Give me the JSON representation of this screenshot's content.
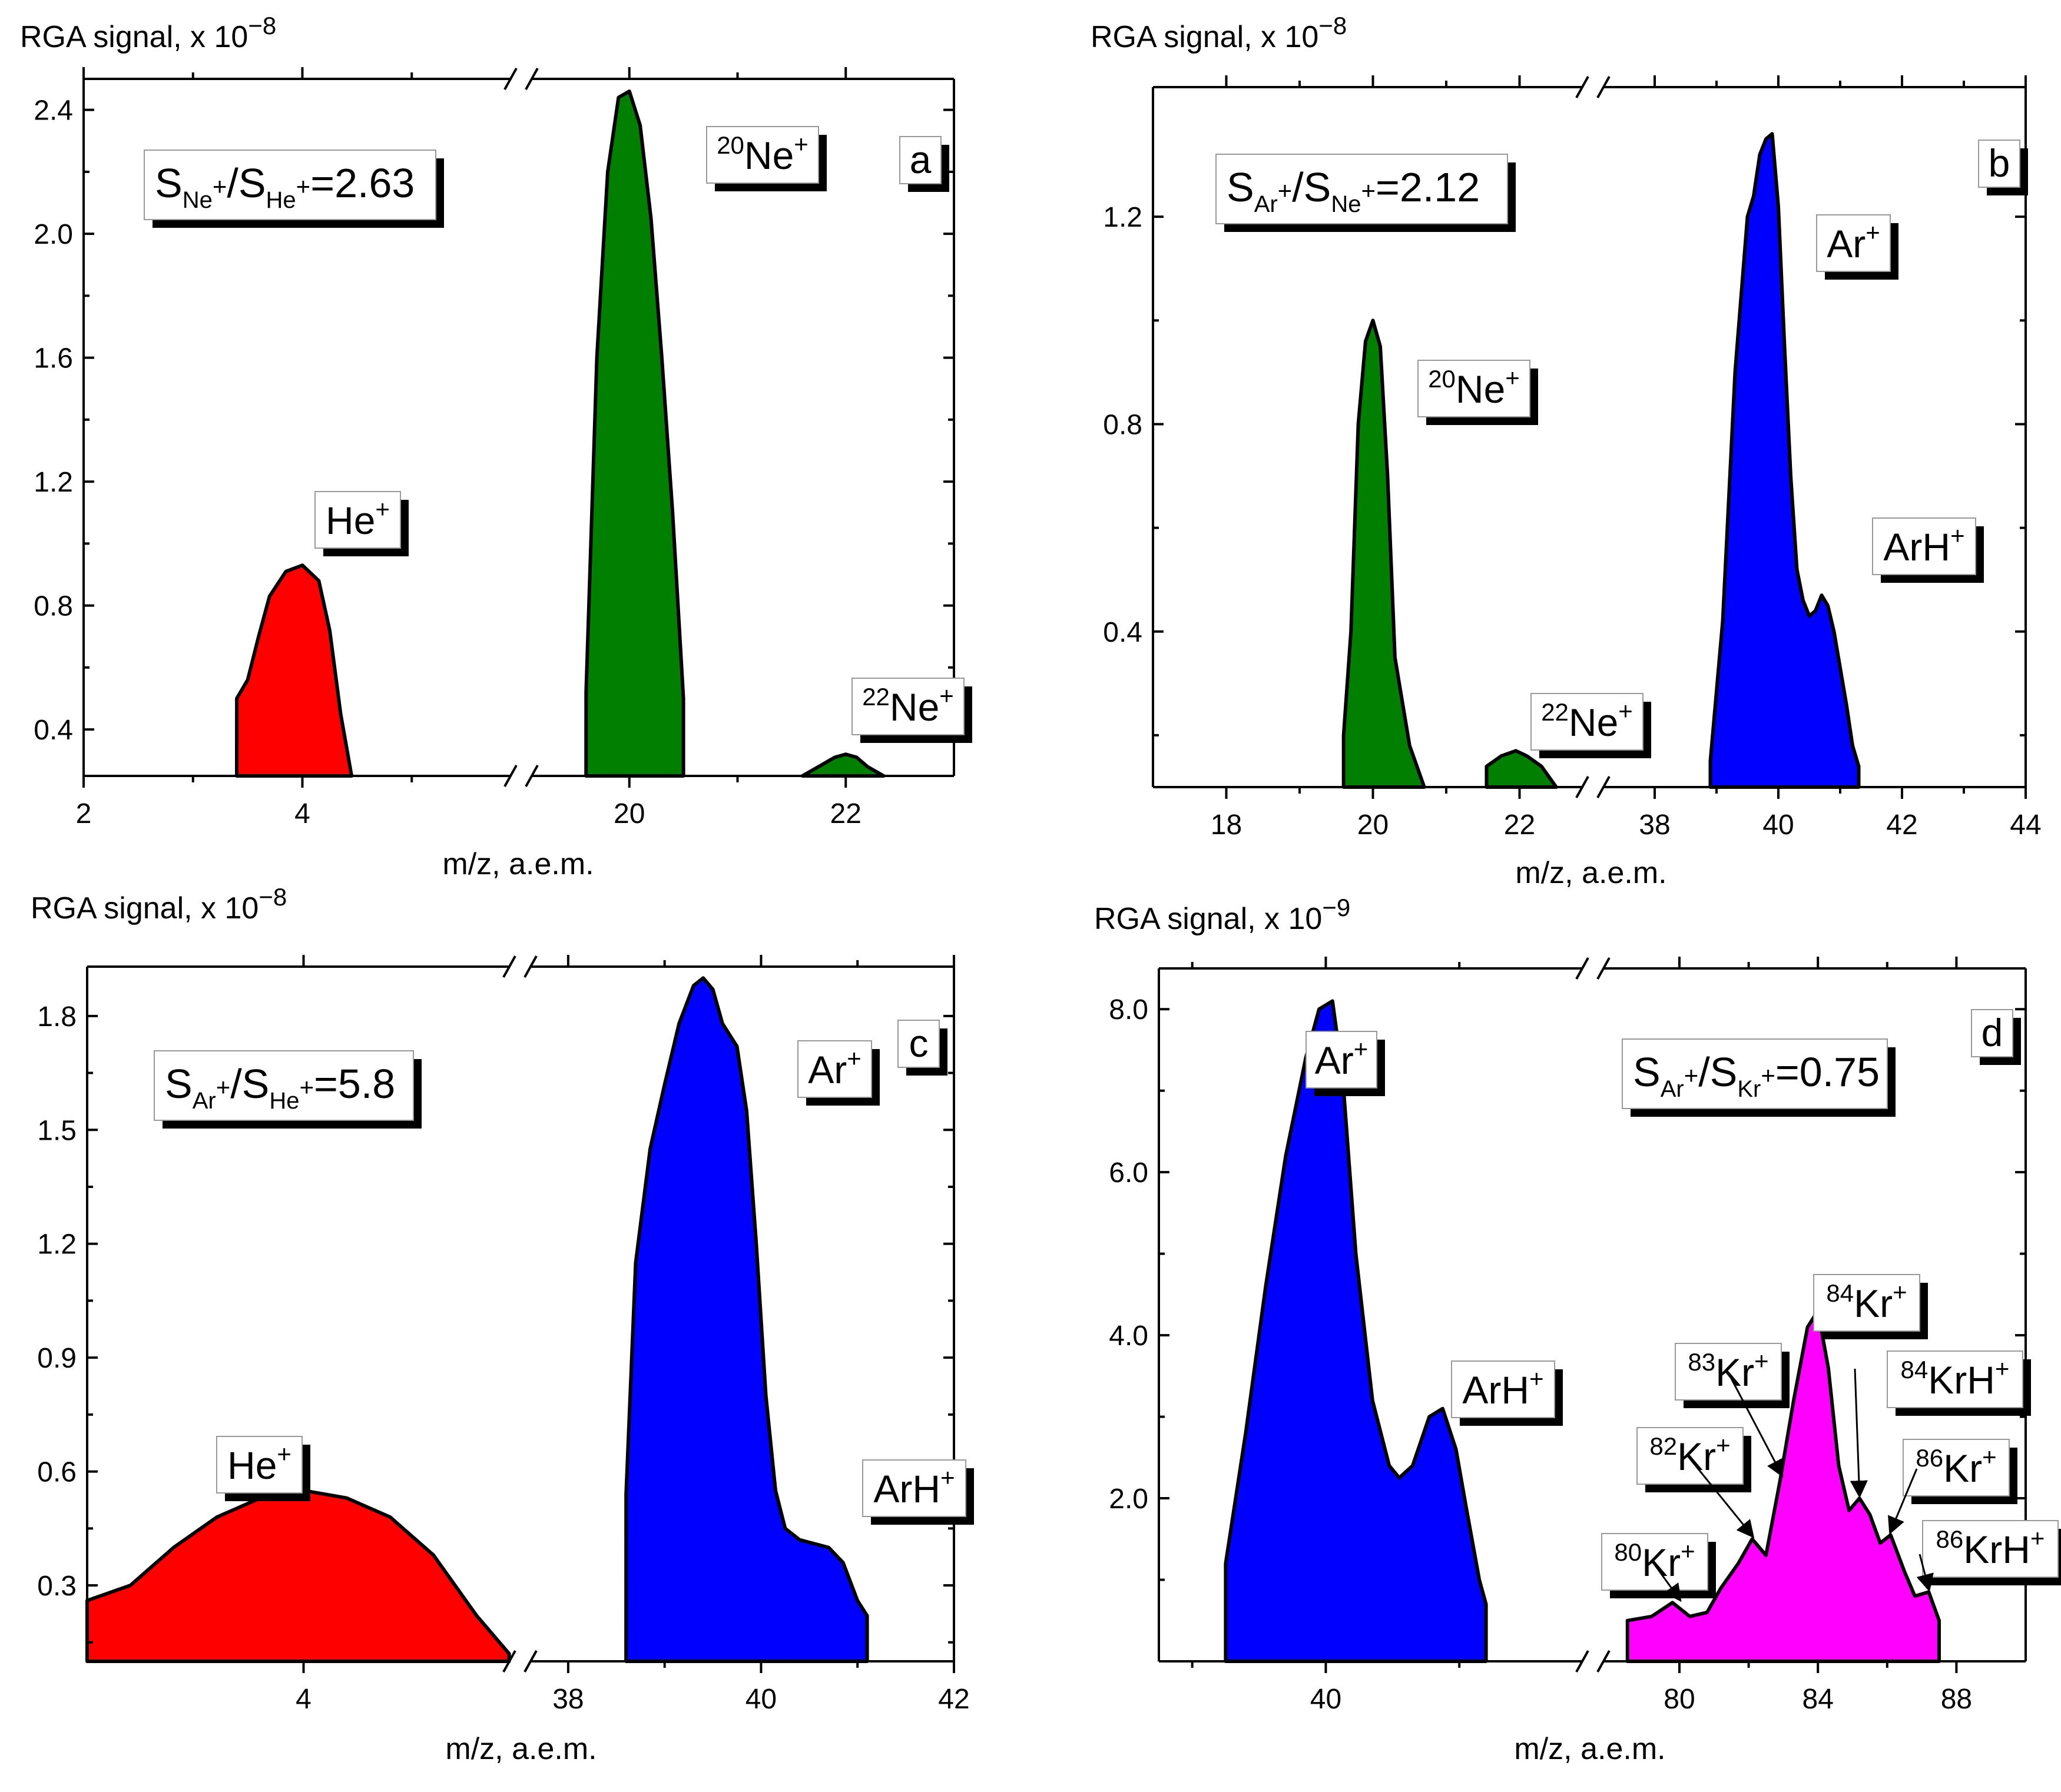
{
  "chart_data": [
    {
      "panel": "a",
      "type": "area",
      "ylabel": "RGA signal, x 10",
      "ylabel_exp": "−8",
      "xlabel": "m/z, a.e.m.",
      "ylim": [
        0.25,
        2.5
      ],
      "yticks": [
        "0.4",
        "0.8",
        "1.2",
        "1.6",
        "2.0",
        "2.4"
      ],
      "ytick_values": [
        0.4,
        0.8,
        1.2,
        1.6,
        2.0,
        2.4
      ],
      "xticks": [
        [
          "2",
          "4"
        ],
        [
          "20",
          "22"
        ]
      ],
      "ratio": {
        "a": "Ne",
        "a_sup": "+",
        "b": "He",
        "b_sup": "+",
        "value": "=2.63"
      },
      "series": [
        {
          "name": "He+",
          "color": "#ff0000",
          "segment": 0,
          "points": [
            [
              3.4,
              0.25
            ],
            [
              3.4,
              0.5
            ],
            [
              3.5,
              0.56
            ],
            [
              3.6,
              0.7
            ],
            [
              3.7,
              0.83
            ],
            [
              3.85,
              0.91
            ],
            [
              4.0,
              0.93
            ],
            [
              4.15,
              0.88
            ],
            [
              4.25,
              0.72
            ],
            [
              4.35,
              0.45
            ],
            [
              4.45,
              0.25
            ]
          ]
        },
        {
          "name": "20Ne+",
          "color": "#007f00",
          "segment": 1,
          "points": [
            [
              19.6,
              0.25
            ],
            [
              19.6,
              0.52
            ],
            [
              19.7,
              1.6
            ],
            [
              19.8,
              2.2
            ],
            [
              19.9,
              2.44
            ],
            [
              20.0,
              2.46
            ],
            [
              20.1,
              2.35
            ],
            [
              20.2,
              2.05
            ],
            [
              20.3,
              1.6
            ],
            [
              20.4,
              1.1
            ],
            [
              20.5,
              0.5
            ],
            [
              20.5,
              0.25
            ]
          ]
        },
        {
          "name": "22Ne+",
          "color": "#007f00",
          "segment": 1,
          "points": [
            [
              21.6,
              0.25
            ],
            [
              21.75,
              0.28
            ],
            [
              21.9,
              0.31
            ],
            [
              22.0,
              0.32
            ],
            [
              22.1,
              0.31
            ],
            [
              22.2,
              0.28
            ],
            [
              22.35,
              0.25
            ]
          ]
        }
      ],
      "labels": [
        {
          "iso": "",
          "text": "He",
          "sup": "+"
        },
        {
          "iso": "20",
          "text": "Ne",
          "sup": "+"
        },
        {
          "iso": "22",
          "text": "Ne",
          "sup": "+"
        }
      ]
    },
    {
      "panel": "b",
      "type": "area",
      "ylabel": "RGA signal, x 10",
      "ylabel_exp": "−8",
      "xlabel": "m/z, a.e.m.",
      "ylim": [
        0.1,
        1.45
      ],
      "yticks": [
        "0.4",
        "0.8",
        "1.2"
      ],
      "ytick_values": [
        0.4,
        0.8,
        1.2
      ],
      "xticks": [
        [
          "18",
          "20",
          "22"
        ],
        [
          "38",
          "40",
          "42",
          "44"
        ]
      ],
      "ratio": {
        "a": "Ar",
        "a_sup": "+",
        "b": "Ne",
        "b_sup": "+",
        "value": "=2.12"
      },
      "series": [
        {
          "name": "20Ne+",
          "color": "#007f00",
          "segment": 0,
          "points": [
            [
              19.6,
              0.1
            ],
            [
              19.6,
              0.2
            ],
            [
              19.7,
              0.4
            ],
            [
              19.8,
              0.8
            ],
            [
              19.9,
              0.96
            ],
            [
              20.0,
              1.0
            ],
            [
              20.1,
              0.95
            ],
            [
              20.2,
              0.7
            ],
            [
              20.3,
              0.35
            ],
            [
              20.5,
              0.18
            ],
            [
              20.7,
              0.1
            ]
          ]
        },
        {
          "name": "22Ne+",
          "color": "#007f00",
          "segment": 0,
          "points": [
            [
              21.55,
              0.1
            ],
            [
              21.55,
              0.14
            ],
            [
              21.75,
              0.16
            ],
            [
              21.95,
              0.17
            ],
            [
              22.1,
              0.16
            ],
            [
              22.3,
              0.14
            ],
            [
              22.5,
              0.1
            ]
          ]
        },
        {
          "name": "Ar+",
          "color": "#0000ff",
          "segment": 1,
          "points": [
            [
              38.9,
              0.1
            ],
            [
              38.9,
              0.15
            ],
            [
              39.1,
              0.42
            ],
            [
              39.3,
              0.9
            ],
            [
              39.5,
              1.2
            ],
            [
              39.6,
              1.24
            ],
            [
              39.7,
              1.32
            ],
            [
              39.8,
              1.35
            ],
            [
              39.9,
              1.36
            ],
            [
              40.0,
              1.22
            ],
            [
              40.1,
              0.95
            ],
            [
              40.2,
              0.7
            ],
            [
              40.3,
              0.52
            ],
            [
              40.4,
              0.46
            ],
            [
              40.5,
              0.43
            ],
            [
              40.6,
              0.44
            ],
            [
              40.7,
              0.47
            ],
            [
              40.8,
              0.45
            ],
            [
              40.9,
              0.4
            ],
            [
              41.0,
              0.33
            ],
            [
              41.1,
              0.26
            ],
            [
              41.2,
              0.18
            ],
            [
              41.3,
              0.14
            ],
            [
              41.3,
              0.1
            ]
          ]
        }
      ],
      "labels": [
        {
          "iso": "20",
          "text": "Ne",
          "sup": "+"
        },
        {
          "iso": "22",
          "text": "Ne",
          "sup": "+"
        },
        {
          "iso": "",
          "text": "Ar",
          "sup": "+"
        },
        {
          "iso": "",
          "text": "ArH",
          "sup": "+"
        }
      ]
    },
    {
      "panel": "c",
      "type": "area",
      "ylabel": "RGA signal, x 10",
      "ylabel_exp": "−8",
      "xlabel": "m/z, a.e.m.",
      "ylim": [
        0.1,
        1.93
      ],
      "yticks": [
        "0.3",
        "0.6",
        "0.9",
        "1.2",
        "1.5",
        "1.8"
      ],
      "ytick_values": [
        0.3,
        0.6,
        0.9,
        1.2,
        1.5,
        1.8
      ],
      "xticks": [
        [
          "4"
        ],
        [
          "38",
          "40",
          "42"
        ]
      ],
      "ratio": {
        "a": "Ar",
        "a_sup": "+",
        "b": "He",
        "b_sup": "+",
        "value": "=5.8"
      },
      "series": [
        {
          "name": "He+",
          "color": "#ff0000",
          "segment": 0,
          "points": [
            [
              3.0,
              0.1
            ],
            [
              3.0,
              0.26
            ],
            [
              3.2,
              0.3
            ],
            [
              3.4,
              0.4
            ],
            [
              3.6,
              0.48
            ],
            [
              3.8,
              0.53
            ],
            [
              4.0,
              0.55
            ],
            [
              4.2,
              0.53
            ],
            [
              4.4,
              0.48
            ],
            [
              4.6,
              0.38
            ],
            [
              4.8,
              0.22
            ],
            [
              4.95,
              0.12
            ],
            [
              4.95,
              0.1
            ]
          ]
        },
        {
          "name": "Ar+",
          "color": "#0000ff",
          "segment": 1,
          "points": [
            [
              38.6,
              0.1
            ],
            [
              38.6,
              0.54
            ],
            [
              38.7,
              1.15
            ],
            [
              38.85,
              1.45
            ],
            [
              39.0,
              1.62
            ],
            [
              39.15,
              1.78
            ],
            [
              39.3,
              1.88
            ],
            [
              39.4,
              1.9
            ],
            [
              39.5,
              1.87
            ],
            [
              39.6,
              1.78
            ],
            [
              39.75,
              1.72
            ],
            [
              39.85,
              1.55
            ],
            [
              39.95,
              1.2
            ],
            [
              40.05,
              0.8
            ],
            [
              40.15,
              0.55
            ],
            [
              40.25,
              0.45
            ],
            [
              40.4,
              0.42
            ],
            [
              40.55,
              0.41
            ],
            [
              40.7,
              0.4
            ],
            [
              40.85,
              0.36
            ],
            [
              41.0,
              0.26
            ],
            [
              41.1,
              0.22
            ],
            [
              41.1,
              0.1
            ]
          ]
        }
      ],
      "labels": [
        {
          "iso": "",
          "text": "He",
          "sup": "+"
        },
        {
          "iso": "",
          "text": "Ar",
          "sup": "+"
        },
        {
          "iso": "",
          "text": "ArH",
          "sup": "+"
        }
      ]
    },
    {
      "panel": "d",
      "type": "area",
      "ylabel": "RGA signal, x 10",
      "ylabel_exp": "−9",
      "xlabel": "m/z, a.e.m.",
      "ylim": [
        0.0,
        8.5
      ],
      "yticks": [
        "2.0",
        "4.0",
        "6.0",
        "8.0"
      ],
      "ytick_values": [
        2.0,
        4.0,
        6.0,
        8.0
      ],
      "xticks": [
        [
          "40"
        ],
        [
          "80",
          "84",
          "88"
        ]
      ],
      "ratio": {
        "a": "Ar",
        "a_sup": "+",
        "b": "Kr",
        "b_sup": "+",
        "value": "=0.75"
      },
      "series": [
        {
          "name": "Ar+",
          "color": "#0000ff",
          "segment": 0,
          "points": [
            [
              38.5,
              0.0
            ],
            [
              38.5,
              1.2
            ],
            [
              38.8,
              2.8
            ],
            [
              39.1,
              4.6
            ],
            [
              39.4,
              6.2
            ],
            [
              39.7,
              7.4
            ],
            [
              39.9,
              8.0
            ],
            [
              40.1,
              8.1
            ],
            [
              40.25,
              7.2
            ],
            [
              40.45,
              5.0
            ],
            [
              40.7,
              3.2
            ],
            [
              40.95,
              2.4
            ],
            [
              41.1,
              2.25
            ],
            [
              41.3,
              2.4
            ],
            [
              41.55,
              3.0
            ],
            [
              41.75,
              3.1
            ],
            [
              41.95,
              2.6
            ],
            [
              42.1,
              1.9
            ],
            [
              42.3,
              1.0
            ],
            [
              42.4,
              0.7
            ],
            [
              42.4,
              0.0
            ]
          ]
        },
        {
          "name": "Kr+",
          "color": "#ff00ff",
          "segment": 1,
          "points": [
            [
              78.5,
              0.0
            ],
            [
              78.5,
              0.5
            ],
            [
              79.2,
              0.55
            ],
            [
              79.8,
              0.72
            ],
            [
              80.3,
              0.55
            ],
            [
              80.8,
              0.6
            ],
            [
              81.2,
              0.9
            ],
            [
              81.7,
              1.2
            ],
            [
              82.1,
              1.5
            ],
            [
              82.5,
              1.3
            ],
            [
              82.9,
              2.2
            ],
            [
              83.3,
              3.2
            ],
            [
              83.7,
              4.1
            ],
            [
              84.0,
              4.3
            ],
            [
              84.3,
              3.6
            ],
            [
              84.6,
              2.4
            ],
            [
              84.9,
              1.85
            ],
            [
              85.2,
              2.0
            ],
            [
              85.5,
              1.8
            ],
            [
              85.8,
              1.45
            ],
            [
              86.1,
              1.55
            ],
            [
              86.5,
              1.1
            ],
            [
              86.8,
              0.8
            ],
            [
              87.2,
              0.85
            ],
            [
              87.5,
              0.5
            ],
            [
              87.5,
              0.0
            ]
          ]
        }
      ],
      "labels": [
        {
          "iso": "",
          "text": "Ar",
          "sup": "+"
        },
        {
          "iso": "",
          "text": "ArH",
          "sup": "+"
        },
        {
          "iso": "80",
          "text": "Kr",
          "sup": "+"
        },
        {
          "iso": "82",
          "text": "Kr",
          "sup": "+"
        },
        {
          "iso": "83",
          "text": "Kr",
          "sup": "+"
        },
        {
          "iso": "84",
          "text": "Kr",
          "sup": "+"
        },
        {
          "iso": "84",
          "text": "KrH",
          "sup": "+"
        },
        {
          "iso": "86",
          "text": "Kr",
          "sup": "+"
        },
        {
          "iso": "86",
          "text": "KrH",
          "sup": "+"
        }
      ]
    }
  ]
}
